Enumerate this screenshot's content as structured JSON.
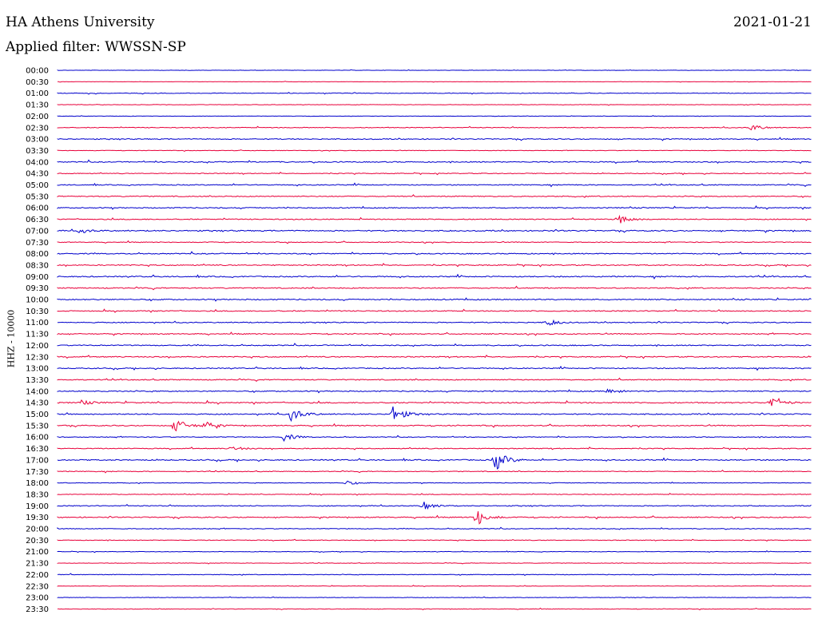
{
  "header": {
    "station": "HA Athens University",
    "filter": "Applied filter: WWSSN-SP",
    "date": "2021-01-21",
    "channel": "HHZ - 10000"
  },
  "colors": {
    "blue": "#0000cc",
    "red": "#e8003a"
  },
  "chart_data": {
    "type": "line",
    "title": "HA Athens University",
    "subtitle": "Applied filter: WWSSN-SP",
    "date": "2021-01-21",
    "ylabel": "HHZ - 10000",
    "xlabel": "",
    "row_labels": [
      "00:00",
      "00:30",
      "01:00",
      "01:30",
      "02:00",
      "02:30",
      "03:00",
      "03:30",
      "04:00",
      "04:30",
      "05:00",
      "05:30",
      "06:00",
      "06:30",
      "07:00",
      "07:30",
      "08:00",
      "08:30",
      "09:00",
      "09:30",
      "10:00",
      "10:30",
      "11:00",
      "11:30",
      "12:00",
      "12:30",
      "13:00",
      "13:30",
      "14:00",
      "14:30",
      "15:00",
      "15:30",
      "16:00",
      "16:30",
      "17:00",
      "17:30",
      "18:00",
      "18:30",
      "19:00",
      "19:30",
      "20:00",
      "20:30",
      "21:00",
      "21:30",
      "22:00",
      "22:30",
      "23:00",
      "23:30"
    ],
    "row_colors": [
      "blue",
      "red"
    ],
    "noise_level": [
      0.5,
      0.5,
      1,
      0.6,
      0.5,
      1.2,
      1.5,
      0.7,
      1.6,
      1.2,
      1.5,
      1.5,
      1.6,
      1.6,
      1.8,
      1.2,
      1.6,
      1.6,
      1.8,
      1.7,
      1.8,
      1.6,
      1.5,
      1.5,
      1.6,
      1.6,
      1.6,
      1.6,
      1.7,
      1.8,
      1.8,
      1.6,
      1.2,
      1.4,
      1.7,
      1.2,
      1,
      1,
      1.4,
      1.6,
      1.1,
      1,
      0.8,
      0.7,
      1,
      0.7,
      0.8,
      0.8
    ],
    "events": [
      {
        "row": 5,
        "x": 0.92,
        "amp": 4
      },
      {
        "row": 13,
        "x": 0.745,
        "amp": 6
      },
      {
        "row": 14,
        "x": 0.03,
        "amp": 3
      },
      {
        "row": 22,
        "x": 0.65,
        "amp": 4
      },
      {
        "row": 28,
        "x": 0.73,
        "amp": 3
      },
      {
        "row": 29,
        "x": 0.03,
        "amp": 3
      },
      {
        "row": 29,
        "x": 0.945,
        "amp": 8
      },
      {
        "row": 30,
        "x": 0.31,
        "amp": 9
      },
      {
        "row": 30,
        "x": 0.445,
        "amp": 10
      },
      {
        "row": 31,
        "x": 0.155,
        "amp": 10
      },
      {
        "row": 31,
        "x": 0.195,
        "amp": 5
      },
      {
        "row": 32,
        "x": 0.3,
        "amp": 5
      },
      {
        "row": 33,
        "x": 0.23,
        "amp": 3
      },
      {
        "row": 34,
        "x": 0.58,
        "amp": 14
      },
      {
        "row": 36,
        "x": 0.38,
        "amp": 3
      },
      {
        "row": 38,
        "x": 0.485,
        "amp": 6
      },
      {
        "row": 39,
        "x": 0.555,
        "amp": 12
      }
    ]
  }
}
